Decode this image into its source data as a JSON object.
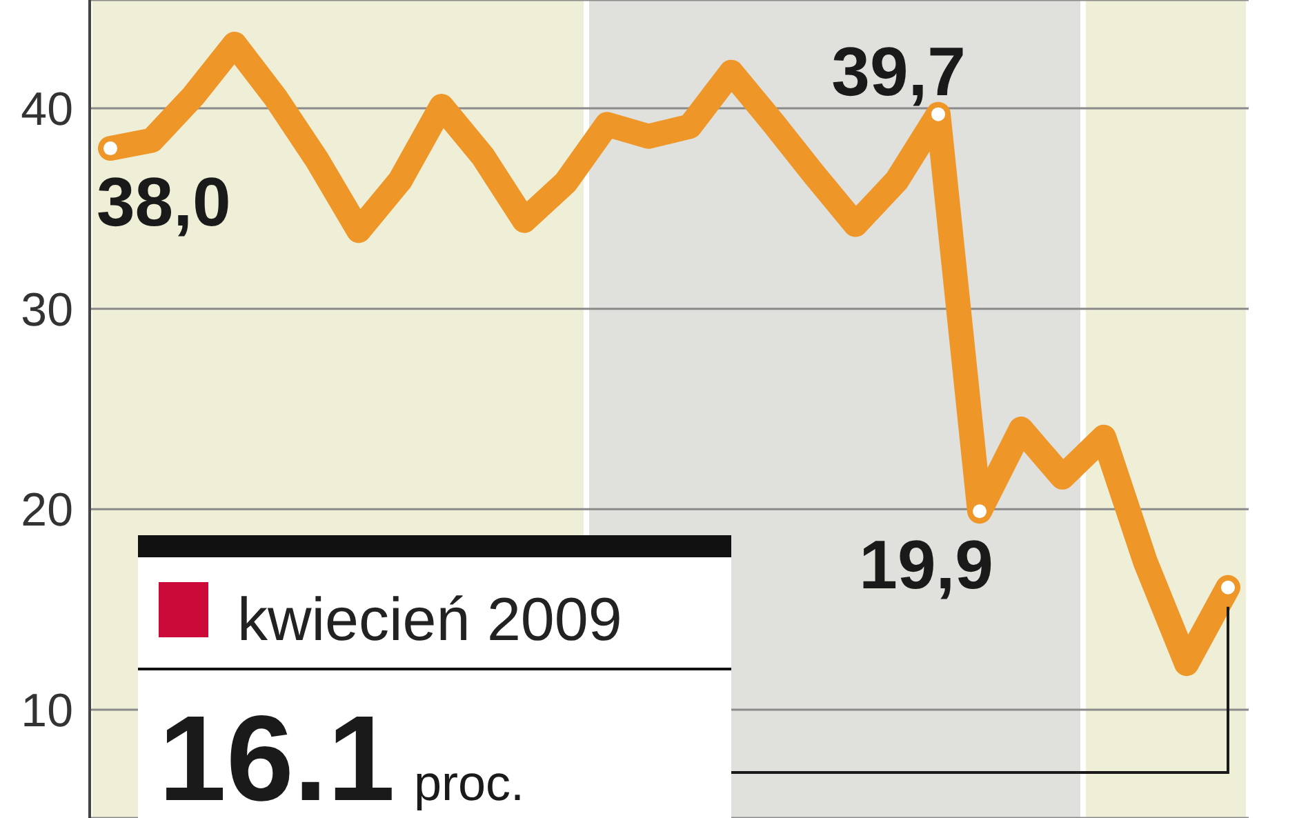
{
  "chart_data": {
    "type": "line",
    "categories": [
      null,
      null,
      null,
      null,
      null,
      null,
      null,
      null,
      null,
      null,
      null,
      null,
      null,
      null,
      null,
      null,
      null,
      null,
      null,
      null,
      null,
      null,
      null,
      null,
      null,
      null,
      null,
      null
    ],
    "series": [
      {
        "color": "#ee9628",
        "values": [
          38.0,
          38.4,
          40.6,
          43.2,
          40.5,
          37.4,
          33.9,
          36.4,
          40.1,
          37.6,
          34.4,
          36.3,
          39.2,
          38.6,
          39.1,
          41.8,
          39.3,
          36.7,
          34.2,
          36.4,
          39.7,
          19.9,
          24.0,
          21.6,
          23.6,
          17.4,
          12.3,
          16.1
        ],
        "value_labels": [
          "38,0",
          null,
          null,
          null,
          null,
          null,
          null,
          null,
          null,
          null,
          null,
          null,
          null,
          null,
          null,
          null,
          null,
          null,
          null,
          null,
          "39,7",
          "19,9",
          null,
          null,
          null,
          null,
          null,
          null
        ]
      }
    ],
    "ylim": [
      4.6,
      45.4
    ],
    "yticks": [
      10,
      20,
      30,
      40
    ],
    "grid": "y",
    "annotations": [
      "kwiecień 2009",
      "16.1",
      "proc."
    ]
  }
}
